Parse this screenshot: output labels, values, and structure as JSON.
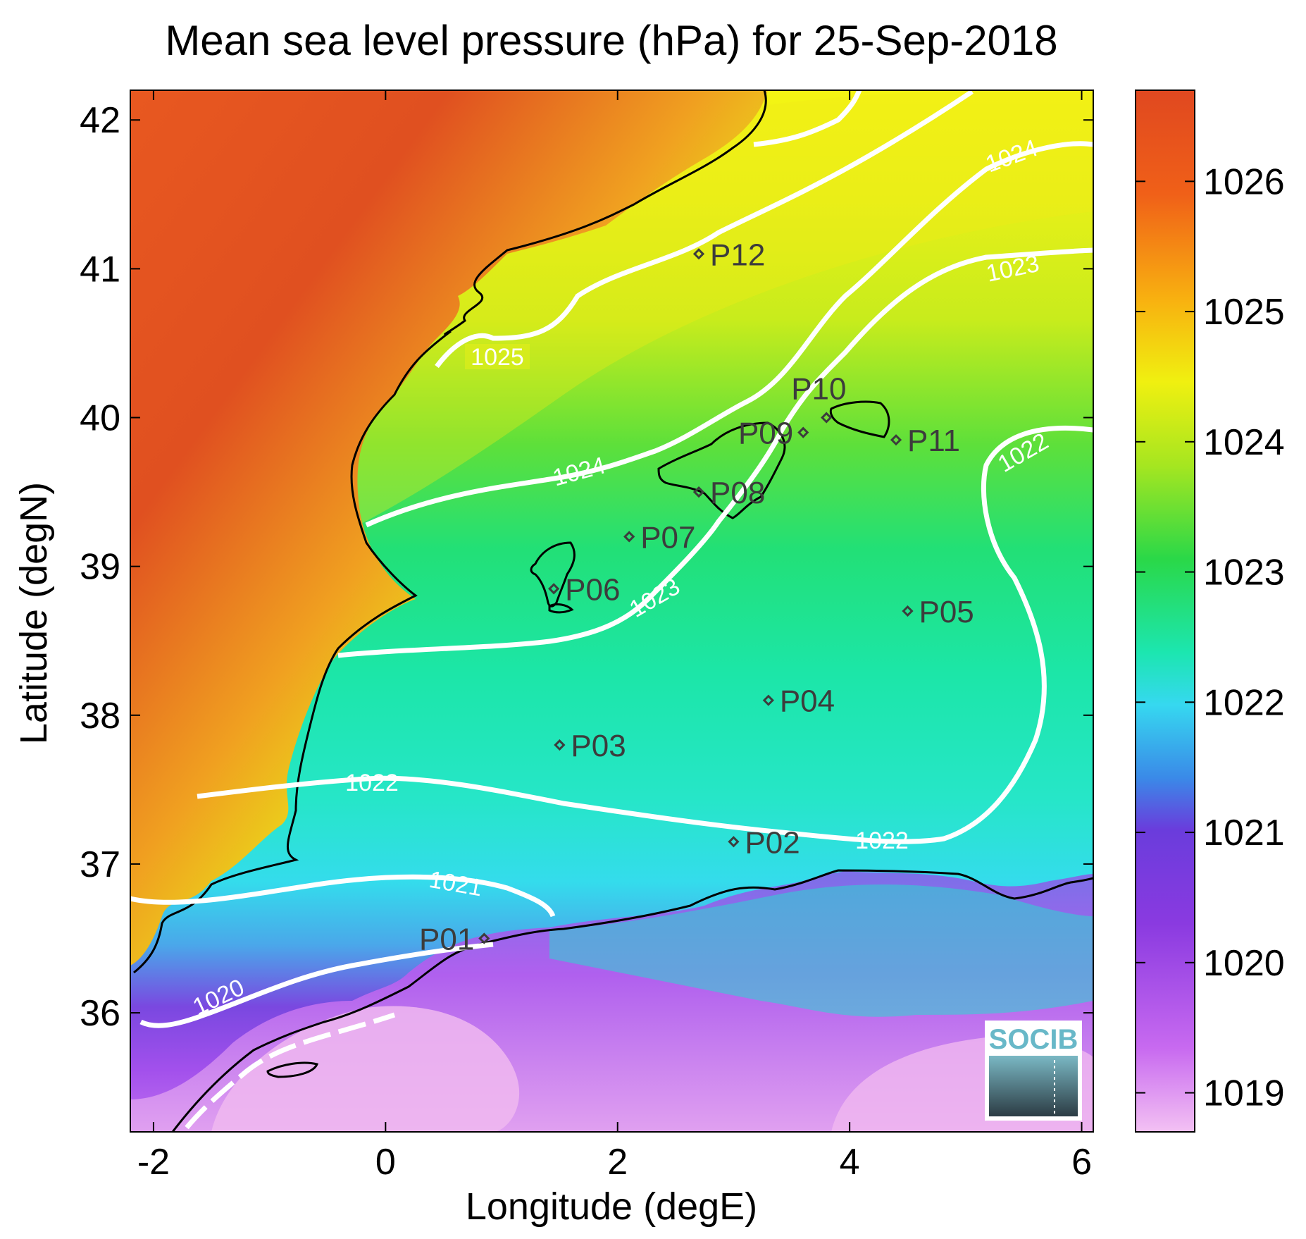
{
  "title": "Mean sea level pressure (hPa) for 25-Sep-2018",
  "x_axis": {
    "label": "Longitude (degE)",
    "range": [
      -2.2,
      6.1
    ],
    "ticks": [
      -2,
      0,
      2,
      4,
      6
    ],
    "tick_labels": [
      "-2",
      "0",
      "2",
      "4",
      "6"
    ]
  },
  "y_axis": {
    "label": "Latitude (degN)",
    "range": [
      35.2,
      42.2
    ],
    "ticks": [
      36,
      37,
      38,
      39,
      40,
      41,
      42
    ],
    "tick_labels": [
      "36",
      "37",
      "38",
      "39",
      "40",
      "41",
      "42"
    ]
  },
  "colorbar": {
    "range": [
      1018.7,
      1026.7
    ],
    "ticks": [
      1019,
      1020,
      1021,
      1022,
      1023,
      1024,
      1025,
      1026
    ],
    "tick_labels": [
      "1019",
      "1020",
      "1021",
      "1022",
      "1023",
      "1024",
      "1025",
      "1026"
    ],
    "colormap": [
      "#f3c1f3",
      "#c86af0",
      "#8a3ae0",
      "#6a3cdc",
      "#3a8ae8",
      "#36d8f0",
      "#1ce6b0",
      "#2ad848",
      "#a6e620",
      "#f0f010",
      "#f8b010",
      "#f06018",
      "#e04820"
    ]
  },
  "contours": [
    {
      "level": 1020,
      "label": "1020"
    },
    {
      "level": 1021,
      "label": "1021"
    },
    {
      "level": 1022,
      "labels": [
        "1022",
        "1022",
        "1022"
      ]
    },
    {
      "level": 1023,
      "labels": [
        "1023",
        "1023"
      ]
    },
    {
      "level": 1024,
      "labels": [
        "1024",
        "1024"
      ]
    },
    {
      "level": 1025,
      "label": "1025"
    }
  ],
  "stations": [
    {
      "name": "P01",
      "lon": 0.85,
      "lat": 36.5
    },
    {
      "name": "P02",
      "lon": 3.0,
      "lat": 37.15
    },
    {
      "name": "P03",
      "lon": 1.5,
      "lat": 37.8
    },
    {
      "name": "P04",
      "lon": 3.3,
      "lat": 38.1
    },
    {
      "name": "P05",
      "lon": 4.5,
      "lat": 38.7
    },
    {
      "name": "P06",
      "lon": 1.45,
      "lat": 38.85
    },
    {
      "name": "P07",
      "lon": 2.1,
      "lat": 39.2
    },
    {
      "name": "P08",
      "lon": 2.7,
      "lat": 39.5
    },
    {
      "name": "P09",
      "lon": 3.6,
      "lat": 39.9
    },
    {
      "name": "P10",
      "lon": 3.8,
      "lat": 40.0
    },
    {
      "name": "P11",
      "lon": 4.4,
      "lat": 39.85
    },
    {
      "name": "P12",
      "lon": 2.7,
      "lat": 41.1
    }
  ],
  "logo_text": "SOCIB",
  "colors": {
    "contour": "#ffffff",
    "coastline": "#000000",
    "station_marker": "#3c3c3c"
  }
}
